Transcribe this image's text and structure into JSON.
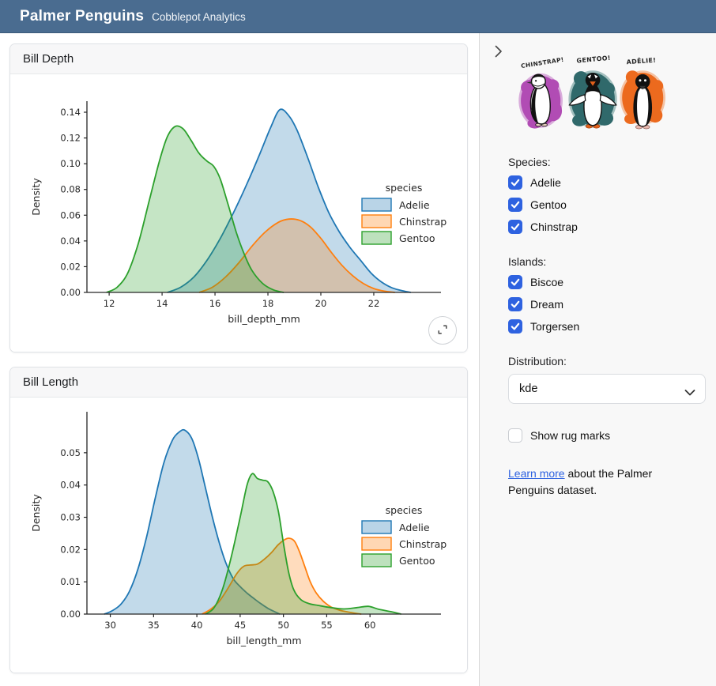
{
  "header": {
    "title": "Palmer Penguins",
    "subtitle": "Cobblepot Analytics"
  },
  "theme": {
    "header_bg": "#4a6c90",
    "accent_blue": "#2e62e0",
    "sidebar_bg": "#f8f8f8",
    "adelie_color": "#1f77b4",
    "chinstrap_color": "#ff7f0e",
    "gentoo_color": "#2ca02c"
  },
  "cards": [
    {
      "title": "Bill Depth"
    },
    {
      "title": "Bill Length"
    }
  ],
  "sidebar": {
    "artwork": {
      "labels": [
        "CHINSTRAP!",
        "GENTOO!",
        "ADĒLIE!"
      ],
      "splash_colors": [
        "#b14cb4",
        "#30696b",
        "#ec6a1e"
      ]
    },
    "species": {
      "label": "Species:",
      "options": [
        {
          "label": "Adelie",
          "checked": true
        },
        {
          "label": "Gentoo",
          "checked": true
        },
        {
          "label": "Chinstrap",
          "checked": true
        }
      ]
    },
    "islands": {
      "label": "Islands:",
      "options": [
        {
          "label": "Biscoe",
          "checked": true
        },
        {
          "label": "Dream",
          "checked": true
        },
        {
          "label": "Torgersen",
          "checked": true
        }
      ]
    },
    "distribution": {
      "label": "Distribution:",
      "value": "kde"
    },
    "rug": {
      "label": "Show rug marks",
      "checked": false
    },
    "footer": {
      "link_text": "Learn more",
      "rest_text": " about the Palmer Penguins dataset."
    }
  },
  "chart_data": [
    {
      "type": "area",
      "variant": "kde",
      "title": "Bill Depth",
      "xlabel": "bill_depth_mm",
      "ylabel": "Density",
      "xlim": [
        11.16,
        24.54
      ],
      "ylim": [
        0,
        0.1486
      ],
      "xticks": [
        12,
        14,
        16,
        18,
        20,
        22
      ],
      "yticks": [
        0,
        0.02,
        0.04,
        0.06,
        0.08,
        0.1,
        0.12,
        0.14
      ],
      "legend_title": "species",
      "legend_position": "center right",
      "grid": false,
      "series": [
        {
          "name": "Adelie",
          "color": "#1f77b4",
          "points": [
            [
              14.2,
              0
            ],
            [
              14.7,
              0.004
            ],
            [
              15.2,
              0.012
            ],
            [
              15.7,
              0.025
            ],
            [
              16.2,
              0.042
            ],
            [
              16.7,
              0.062
            ],
            [
              17.2,
              0.084
            ],
            [
              17.7,
              0.108
            ],
            [
              18.1,
              0.128
            ],
            [
              18.45,
              0.142
            ],
            [
              18.8,
              0.137
            ],
            [
              19.1,
              0.126
            ],
            [
              19.5,
              0.105
            ],
            [
              19.9,
              0.082
            ],
            [
              20.3,
              0.062
            ],
            [
              20.7,
              0.047
            ],
            [
              21.1,
              0.035
            ],
            [
              21.5,
              0.025
            ],
            [
              21.9,
              0.015
            ],
            [
              22.3,
              0.008
            ],
            [
              22.7,
              0.0035
            ],
            [
              23.1,
              0.0012
            ],
            [
              23.4,
              0
            ]
          ]
        },
        {
          "name": "Chinstrap",
          "color": "#ff7f0e",
          "points": [
            [
              15.4,
              0
            ],
            [
              15.9,
              0.004
            ],
            [
              16.4,
              0.012
            ],
            [
              16.9,
              0.023
            ],
            [
              17.4,
              0.036
            ],
            [
              17.9,
              0.047
            ],
            [
              18.4,
              0.0545
            ],
            [
              18.8,
              0.057
            ],
            [
              19.2,
              0.056
            ],
            [
              19.6,
              0.051
            ],
            [
              20,
              0.042
            ],
            [
              20.4,
              0.031
            ],
            [
              20.8,
              0.021
            ],
            [
              21.2,
              0.013
            ],
            [
              21.6,
              0.007
            ],
            [
              22,
              0.003
            ],
            [
              22.4,
              0.001
            ],
            [
              22.8,
              0
            ]
          ]
        },
        {
          "name": "Gentoo",
          "color": "#2ca02c",
          "points": [
            [
              11.9,
              0
            ],
            [
              12.3,
              0.004
            ],
            [
              12.7,
              0.015
            ],
            [
              13.1,
              0.038
            ],
            [
              13.5,
              0.07
            ],
            [
              13.9,
              0.102
            ],
            [
              14.2,
              0.121
            ],
            [
              14.5,
              0.129
            ],
            [
              14.8,
              0.127
            ],
            [
              15.1,
              0.118
            ],
            [
              15.4,
              0.108
            ],
            [
              15.7,
              0.102
            ],
            [
              15.95,
              0.098
            ],
            [
              16.2,
              0.088
            ],
            [
              16.5,
              0.068
            ],
            [
              16.8,
              0.047
            ],
            [
              17.1,
              0.03
            ],
            [
              17.4,
              0.017
            ],
            [
              17.8,
              0.007
            ],
            [
              18.2,
              0.002
            ],
            [
              18.6,
              0
            ]
          ]
        }
      ]
    },
    {
      "type": "area",
      "variant": "kde",
      "title": "Bill Length",
      "xlabel": "bill_length_mm",
      "ylabel": "Density",
      "xlim": [
        27.3,
        68.2
      ],
      "ylim": [
        0,
        0.0627
      ],
      "xticks": [
        30,
        35,
        40,
        45,
        50,
        55,
        60
      ],
      "yticks": [
        0,
        0.01,
        0.02,
        0.03,
        0.04,
        0.05
      ],
      "legend_title": "species",
      "legend_position": "center right",
      "grid": false,
      "series": [
        {
          "name": "Adelie",
          "color": "#1f77b4",
          "points": [
            [
              29.3,
              0
            ],
            [
              30.2,
              0.001
            ],
            [
              31.2,
              0.003
            ],
            [
              32.2,
              0.007
            ],
            [
              33.2,
              0.014
            ],
            [
              34.2,
              0.024
            ],
            [
              35.2,
              0.036
            ],
            [
              36.2,
              0.047
            ],
            [
              37.2,
              0.054
            ],
            [
              38,
              0.0565
            ],
            [
              38.6,
              0.057
            ],
            [
              39.4,
              0.0545
            ],
            [
              40.2,
              0.048
            ],
            [
              41,
              0.039
            ],
            [
              41.8,
              0.03
            ],
            [
              42.6,
              0.022
            ],
            [
              43.4,
              0.0155
            ],
            [
              44.2,
              0.011
            ],
            [
              45,
              0.0085
            ],
            [
              45.8,
              0.0065
            ],
            [
              46.6,
              0.0048
            ],
            [
              47.4,
              0.0032
            ],
            [
              48.2,
              0.0018
            ],
            [
              49,
              0.0007
            ],
            [
              49.6,
              0
            ]
          ]
        },
        {
          "name": "Chinstrap",
          "color": "#ff7f0e",
          "points": [
            [
              40.6,
              0
            ],
            [
              41.6,
              0.0015
            ],
            [
              42.6,
              0.004
            ],
            [
              43.6,
              0.008
            ],
            [
              44.6,
              0.0125
            ],
            [
              45.4,
              0.0148
            ],
            [
              46.2,
              0.0152
            ],
            [
              47,
              0.0155
            ],
            [
              47.8,
              0.017
            ],
            [
              48.6,
              0.019
            ],
            [
              49.4,
              0.0215
            ],
            [
              50.1,
              0.023
            ],
            [
              50.7,
              0.0235
            ],
            [
              51.3,
              0.0225
            ],
            [
              51.9,
              0.019
            ],
            [
              52.5,
              0.0145
            ],
            [
              53.1,
              0.01
            ],
            [
              53.8,
              0.0065
            ],
            [
              54.6,
              0.004
            ],
            [
              55.5,
              0.0022
            ],
            [
              56.5,
              0.0012
            ],
            [
              57.8,
              0.0005
            ],
            [
              59,
              0
            ]
          ]
        },
        {
          "name": "Gentoo",
          "color": "#2ca02c",
          "points": [
            [
              41,
              0
            ],
            [
              42,
              0.002
            ],
            [
              43,
              0.008
            ],
            [
              44,
              0.018
            ],
            [
              45,
              0.03
            ],
            [
              45.8,
              0.04
            ],
            [
              46.4,
              0.0435
            ],
            [
              47,
              0.042
            ],
            [
              47.6,
              0.0415
            ],
            [
              48.2,
              0.041
            ],
            [
              48.8,
              0.038
            ],
            [
              49.4,
              0.032
            ],
            [
              50,
              0.022
            ],
            [
              50.6,
              0.013
            ],
            [
              51.2,
              0.0075
            ],
            [
              52,
              0.0045
            ],
            [
              53,
              0.0032
            ],
            [
              54,
              0.0027
            ],
            [
              55.5,
              0.002
            ],
            [
              57,
              0.0016
            ],
            [
              58.5,
              0.002
            ],
            [
              59.8,
              0.0024
            ],
            [
              61,
              0.0015
            ],
            [
              62.5,
              0.0007
            ],
            [
              63.6,
              0
            ]
          ]
        }
      ]
    }
  ]
}
